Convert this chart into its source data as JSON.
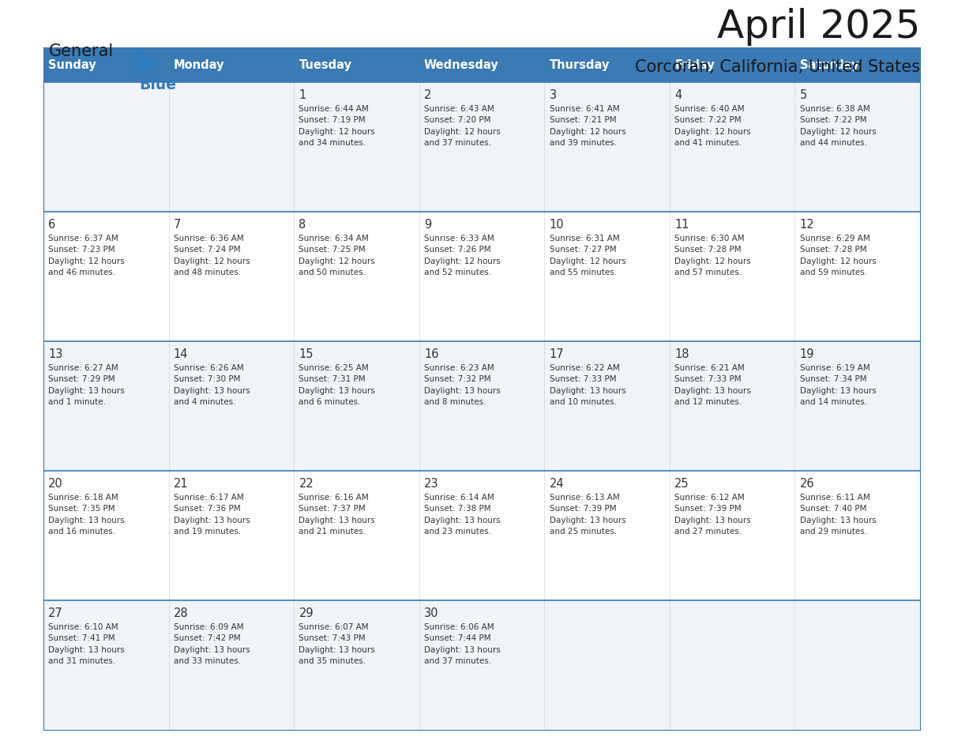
{
  "title": "April 2025",
  "subtitle": "Corcoran, California, United States",
  "header_bg_color": "#3a7ab5",
  "header_text_color": "#ffffff",
  "row_bg_even": "#f0f4f8",
  "row_bg_odd": "#ffffff",
  "grid_line_color": "#3a7ab5",
  "text_color": "#333333",
  "days_of_week": [
    "Sunday",
    "Monday",
    "Tuesday",
    "Wednesday",
    "Thursday",
    "Friday",
    "Saturday"
  ],
  "logo_general_color": "#1a1a1a",
  "logo_blue_color": "#2e7bbf",
  "logo_triangle_color": "#2e7bbf",
  "title_color": "#1a1a1a",
  "subtitle_color": "#1a1a1a",
  "calendar": [
    [
      {
        "day": "",
        "info": ""
      },
      {
        "day": "",
        "info": ""
      },
      {
        "day": "1",
        "info": "Sunrise: 6:44 AM\nSunset: 7:19 PM\nDaylight: 12 hours\nand 34 minutes."
      },
      {
        "day": "2",
        "info": "Sunrise: 6:43 AM\nSunset: 7:20 PM\nDaylight: 12 hours\nand 37 minutes."
      },
      {
        "day": "3",
        "info": "Sunrise: 6:41 AM\nSunset: 7:21 PM\nDaylight: 12 hours\nand 39 minutes."
      },
      {
        "day": "4",
        "info": "Sunrise: 6:40 AM\nSunset: 7:22 PM\nDaylight: 12 hours\nand 41 minutes."
      },
      {
        "day": "5",
        "info": "Sunrise: 6:38 AM\nSunset: 7:22 PM\nDaylight: 12 hours\nand 44 minutes."
      }
    ],
    [
      {
        "day": "6",
        "info": "Sunrise: 6:37 AM\nSunset: 7:23 PM\nDaylight: 12 hours\nand 46 minutes."
      },
      {
        "day": "7",
        "info": "Sunrise: 6:36 AM\nSunset: 7:24 PM\nDaylight: 12 hours\nand 48 minutes."
      },
      {
        "day": "8",
        "info": "Sunrise: 6:34 AM\nSunset: 7:25 PM\nDaylight: 12 hours\nand 50 minutes."
      },
      {
        "day": "9",
        "info": "Sunrise: 6:33 AM\nSunset: 7:26 PM\nDaylight: 12 hours\nand 52 minutes."
      },
      {
        "day": "10",
        "info": "Sunrise: 6:31 AM\nSunset: 7:27 PM\nDaylight: 12 hours\nand 55 minutes."
      },
      {
        "day": "11",
        "info": "Sunrise: 6:30 AM\nSunset: 7:28 PM\nDaylight: 12 hours\nand 57 minutes."
      },
      {
        "day": "12",
        "info": "Sunrise: 6:29 AM\nSunset: 7:28 PM\nDaylight: 12 hours\nand 59 minutes."
      }
    ],
    [
      {
        "day": "13",
        "info": "Sunrise: 6:27 AM\nSunset: 7:29 PM\nDaylight: 13 hours\nand 1 minute."
      },
      {
        "day": "14",
        "info": "Sunrise: 6:26 AM\nSunset: 7:30 PM\nDaylight: 13 hours\nand 4 minutes."
      },
      {
        "day": "15",
        "info": "Sunrise: 6:25 AM\nSunset: 7:31 PM\nDaylight: 13 hours\nand 6 minutes."
      },
      {
        "day": "16",
        "info": "Sunrise: 6:23 AM\nSunset: 7:32 PM\nDaylight: 13 hours\nand 8 minutes."
      },
      {
        "day": "17",
        "info": "Sunrise: 6:22 AM\nSunset: 7:33 PM\nDaylight: 13 hours\nand 10 minutes."
      },
      {
        "day": "18",
        "info": "Sunrise: 6:21 AM\nSunset: 7:33 PM\nDaylight: 13 hours\nand 12 minutes."
      },
      {
        "day": "19",
        "info": "Sunrise: 6:19 AM\nSunset: 7:34 PM\nDaylight: 13 hours\nand 14 minutes."
      }
    ],
    [
      {
        "day": "20",
        "info": "Sunrise: 6:18 AM\nSunset: 7:35 PM\nDaylight: 13 hours\nand 16 minutes."
      },
      {
        "day": "21",
        "info": "Sunrise: 6:17 AM\nSunset: 7:36 PM\nDaylight: 13 hours\nand 19 minutes."
      },
      {
        "day": "22",
        "info": "Sunrise: 6:16 AM\nSunset: 7:37 PM\nDaylight: 13 hours\nand 21 minutes."
      },
      {
        "day": "23",
        "info": "Sunrise: 6:14 AM\nSunset: 7:38 PM\nDaylight: 13 hours\nand 23 minutes."
      },
      {
        "day": "24",
        "info": "Sunrise: 6:13 AM\nSunset: 7:39 PM\nDaylight: 13 hours\nand 25 minutes."
      },
      {
        "day": "25",
        "info": "Sunrise: 6:12 AM\nSunset: 7:39 PM\nDaylight: 13 hours\nand 27 minutes."
      },
      {
        "day": "26",
        "info": "Sunrise: 6:11 AM\nSunset: 7:40 PM\nDaylight: 13 hours\nand 29 minutes."
      }
    ],
    [
      {
        "day": "27",
        "info": "Sunrise: 6:10 AM\nSunset: 7:41 PM\nDaylight: 13 hours\nand 31 minutes."
      },
      {
        "day": "28",
        "info": "Sunrise: 6:09 AM\nSunset: 7:42 PM\nDaylight: 13 hours\nand 33 minutes."
      },
      {
        "day": "29",
        "info": "Sunrise: 6:07 AM\nSunset: 7:43 PM\nDaylight: 13 hours\nand 35 minutes."
      },
      {
        "day": "30",
        "info": "Sunrise: 6:06 AM\nSunset: 7:44 PM\nDaylight: 13 hours\nand 37 minutes."
      },
      {
        "day": "",
        "info": ""
      },
      {
        "day": "",
        "info": ""
      },
      {
        "day": "",
        "info": ""
      }
    ]
  ]
}
